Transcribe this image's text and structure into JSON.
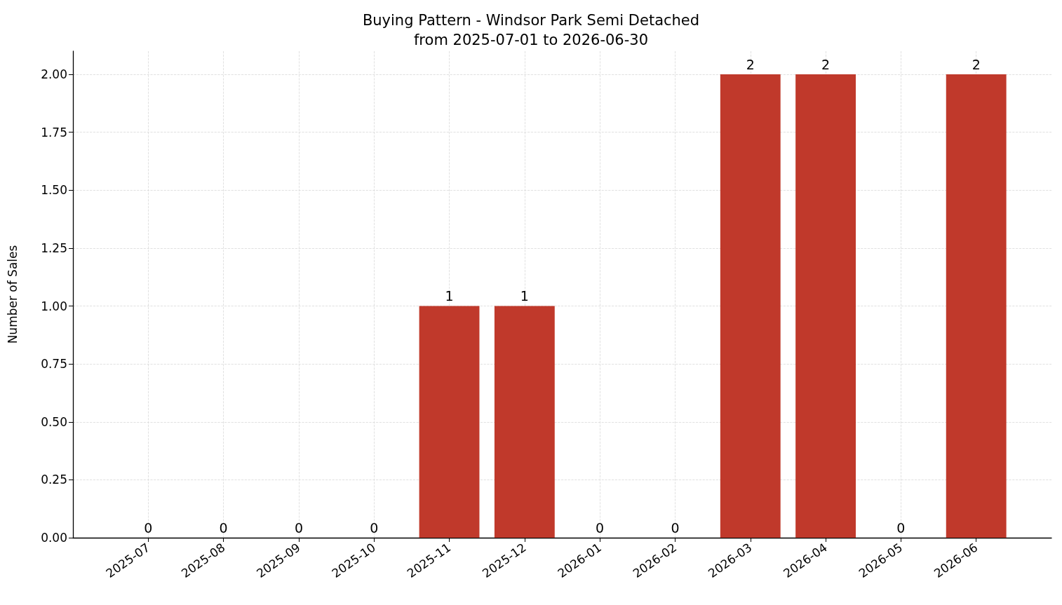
{
  "chart_data": {
    "type": "bar",
    "title": "Buying Pattern - Windsor Park Semi Detached\nfrom 2025-07-01 to 2026-06-30",
    "ylabel": "Number of Sales",
    "categories": [
      "2025-07",
      "2025-08",
      "2025-09",
      "2025-10",
      "2025-11",
      "2025-12",
      "2026-01",
      "2026-02",
      "2026-03",
      "2026-04",
      "2026-05",
      "2026-06"
    ],
    "values": [
      0,
      0,
      0,
      0,
      1,
      1,
      0,
      0,
      2,
      2,
      0,
      2
    ],
    "color": "#c0392b",
    "ylim": [
      0,
      2.1
    ],
    "yticks": [
      {
        "value": 0,
        "label": "0.00"
      },
      {
        "value": 0.25,
        "label": "0.25"
      },
      {
        "value": 0.5,
        "label": "0.50"
      },
      {
        "value": 0.75,
        "label": "0.75"
      },
      {
        "value": 1,
        "label": "1.00"
      },
      {
        "value": 1.25,
        "label": "1.25"
      },
      {
        "value": 1.5,
        "label": "1.50"
      },
      {
        "value": 1.75,
        "label": "1.75"
      },
      {
        "value": 2,
        "label": "2.00"
      }
    ],
    "grid": true,
    "data_labels": true
  }
}
